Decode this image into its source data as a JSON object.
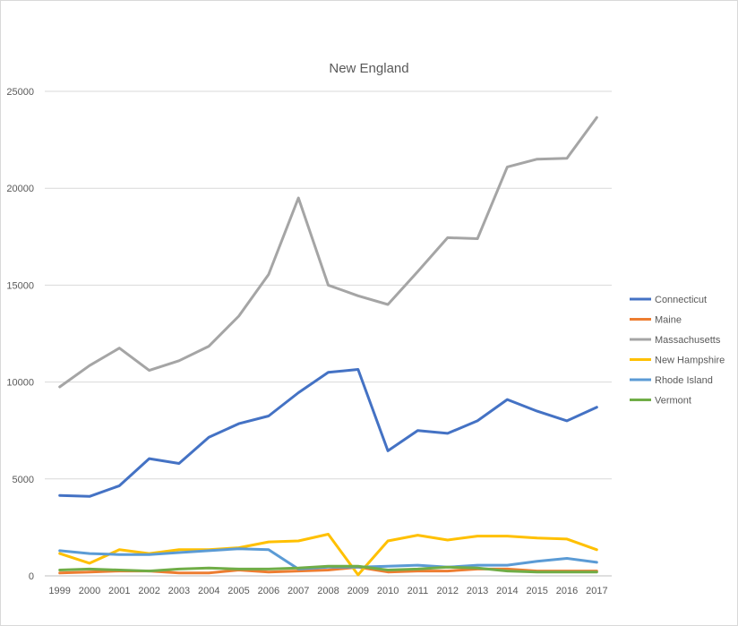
{
  "chart_data": {
    "type": "line",
    "title": "New England",
    "xlabel": "",
    "ylabel": "",
    "ylim": [
      0,
      25000
    ],
    "yticks": [
      0,
      5000,
      10000,
      15000,
      20000,
      25000
    ],
    "grid": true,
    "legend_position": "right",
    "x": [
      "1999",
      "2000",
      "2001",
      "2002",
      "2003",
      "2004",
      "2005",
      "2006",
      "2007",
      "2008",
      "2009",
      "2010",
      "2011",
      "2012",
      "2013",
      "2014",
      "2015",
      "2016",
      "2017"
    ],
    "series": [
      {
        "name": "Connecticut",
        "color": "#4472C4",
        "values": [
          4150,
          4100,
          4650,
          6050,
          5800,
          7150,
          7850,
          8250,
          9450,
          10500,
          10650,
          6450,
          7500,
          7350,
          8000,
          9100,
          8500,
          8000,
          8700
        ]
      },
      {
        "name": "Maine",
        "color": "#ED7D31",
        "values": [
          150,
          200,
          250,
          250,
          150,
          150,
          300,
          200,
          250,
          300,
          450,
          200,
          250,
          250,
          350,
          350,
          250,
          250,
          250
        ]
      },
      {
        "name": "Massachusetts",
        "color": "#A5A5A5",
        "values": [
          9750,
          10850,
          11750,
          10600,
          11100,
          11850,
          13400,
          15550,
          19500,
          15000,
          14450,
          14000,
          15700,
          17450,
          17400,
          21100,
          21500,
          21550,
          23650
        ]
      },
      {
        "name": "New Hampshire",
        "color": "#FFC000",
        "values": [
          1150,
          650,
          1350,
          1150,
          1350,
          1350,
          1450,
          1750,
          1800,
          2150,
          50,
          1800,
          2100,
          1850,
          2050,
          2050,
          1950,
          1900,
          1350
        ]
      },
      {
        "name": "Rhode Island",
        "color": "#5B9BD5",
        "values": [
          1300,
          1150,
          1100,
          1100,
          1200,
          1300,
          1400,
          1350,
          350,
          450,
          450,
          500,
          550,
          450,
          550,
          550,
          750,
          900,
          700
        ]
      },
      {
        "name": "Vermont",
        "color": "#70AD47",
        "values": [
          300,
          350,
          300,
          250,
          350,
          400,
          350,
          350,
          400,
          500,
          500,
          300,
          350,
          450,
          400,
          250,
          200,
          200,
          200
        ]
      }
    ]
  }
}
